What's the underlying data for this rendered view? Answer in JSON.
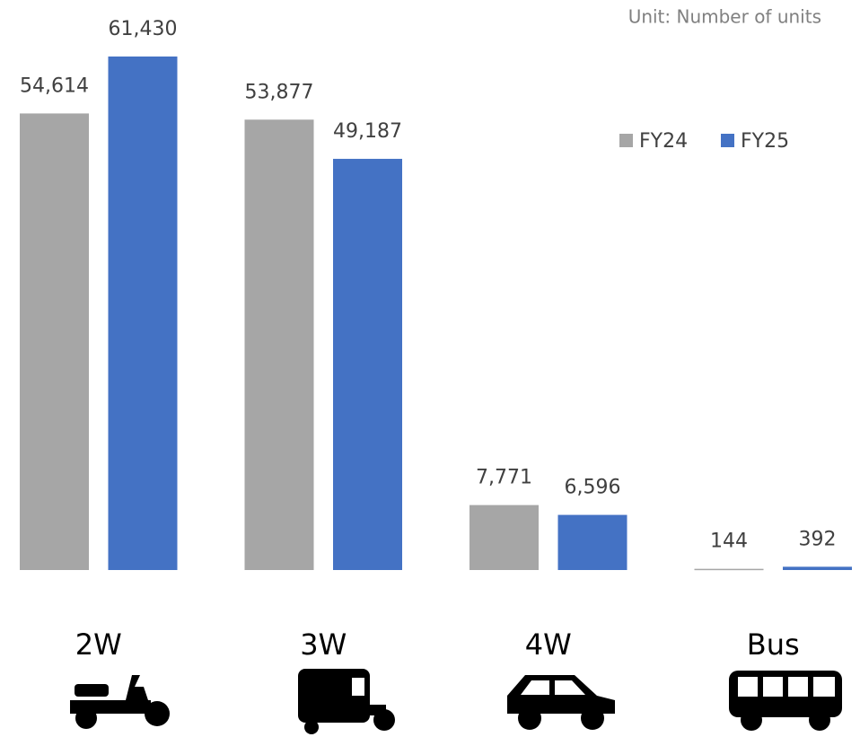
{
  "chart_data": {
    "type": "bar",
    "subtitle": "Unit: Number of units",
    "categories": [
      "2W",
      "3W",
      "4W",
      "Bus"
    ],
    "series": [
      {
        "name": "FY24",
        "color": "#a6a6a6",
        "values": [
          54614,
          53877,
          7771,
          144
        ],
        "value_labels": [
          "54,614",
          "53,877",
          "7,771",
          "144"
        ]
      },
      {
        "name": "FY25",
        "color": "#4472c4",
        "values": [
          61430,
          49187,
          6596,
          392
        ],
        "value_labels": [
          "61,430",
          "49,187",
          "6,596",
          "392"
        ]
      }
    ],
    "ylim": [
      0,
      64000
    ],
    "legend": "upper right"
  }
}
